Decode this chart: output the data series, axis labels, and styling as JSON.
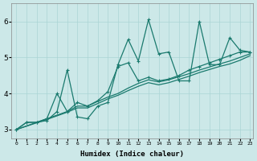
{
  "xlabel": "Humidex (Indice chaleur)",
  "bg_color": "#cce8e8",
  "line_color": "#1a7a6e",
  "grid_color": "#aad4d4",
  "xlim_min": -0.5,
  "xlim_max": 23.3,
  "ylim_min": 2.75,
  "ylim_max": 6.5,
  "xticks": [
    0,
    1,
    2,
    3,
    4,
    5,
    6,
    7,
    8,
    9,
    10,
    11,
    12,
    13,
    14,
    15,
    16,
    17,
    18,
    19,
    20,
    21,
    22,
    23
  ],
  "yticks": [
    3,
    4,
    5,
    6
  ],
  "series": [
    {
      "x": [
        0,
        1,
        2,
        3,
        4,
        5,
        6,
        7,
        8,
        9,
        10,
        11,
        12,
        13,
        14,
        15,
        16,
        17,
        18,
        19,
        20,
        21,
        22,
        23
      ],
      "y": [
        3.0,
        3.2,
        3.2,
        3.25,
        3.5,
        4.65,
        3.35,
        3.3,
        3.65,
        3.75,
        4.8,
        5.5,
        4.9,
        6.05,
        5.1,
        5.15,
        4.35,
        4.35,
        6.0,
        4.8,
        4.8,
        5.55,
        5.2,
        5.15
      ],
      "marker": true,
      "linewidth": 0.9
    },
    {
      "x": [
        0,
        1,
        2,
        3,
        4,
        5,
        6,
        7,
        8,
        9,
        10,
        11,
        12,
        13,
        14,
        15,
        16,
        17,
        18,
        19,
        20,
        21,
        22,
        23
      ],
      "y": [
        3.0,
        3.2,
        3.2,
        3.3,
        4.0,
        3.5,
        3.75,
        3.65,
        3.8,
        4.05,
        4.75,
        4.85,
        4.35,
        4.45,
        4.35,
        4.4,
        4.5,
        4.65,
        4.75,
        4.85,
        4.95,
        5.05,
        5.15,
        5.15
      ],
      "marker": true,
      "linewidth": 0.9
    },
    {
      "x": [
        0,
        3,
        5,
        6,
        7,
        8,
        9,
        10,
        11,
        12,
        13,
        14,
        15,
        17,
        18,
        20,
        21,
        22,
        23
      ],
      "y": [
        3.0,
        3.3,
        3.5,
        3.65,
        3.65,
        3.78,
        3.9,
        4.0,
        4.15,
        4.28,
        4.38,
        4.32,
        4.38,
        4.55,
        4.65,
        4.82,
        4.9,
        5.0,
        5.1
      ],
      "marker": false,
      "linewidth": 0.9
    },
    {
      "x": [
        0,
        3,
        5,
        6,
        7,
        8,
        9,
        10,
        11,
        12,
        13,
        14,
        15,
        17,
        18,
        20,
        21,
        22,
        23
      ],
      "y": [
        3.0,
        3.28,
        3.48,
        3.6,
        3.6,
        3.72,
        3.85,
        3.95,
        4.08,
        4.2,
        4.3,
        4.24,
        4.3,
        4.48,
        4.58,
        4.75,
        4.82,
        4.92,
        5.05
      ],
      "marker": false,
      "linewidth": 0.9
    }
  ]
}
